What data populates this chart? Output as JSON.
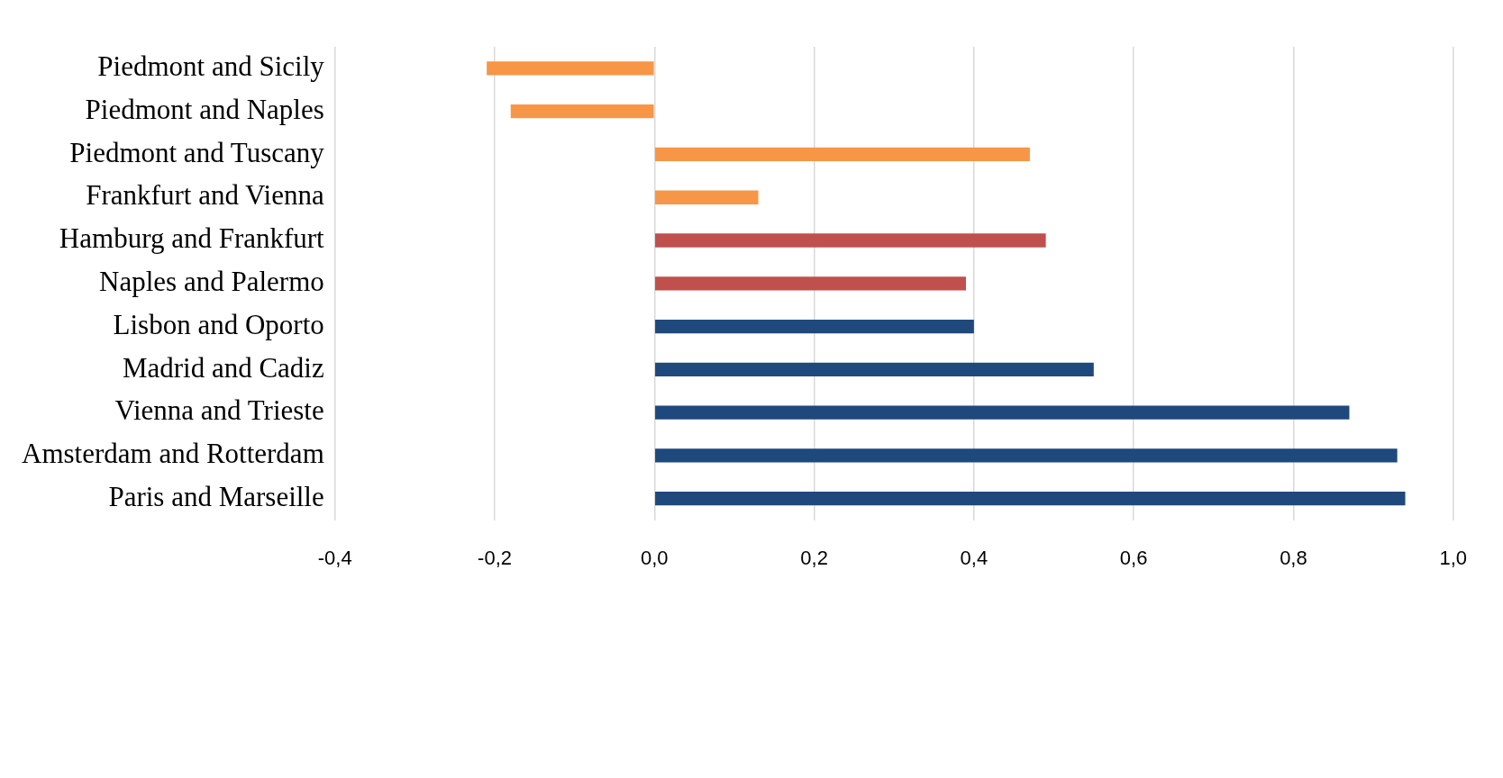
{
  "chart_data": {
    "type": "bar",
    "orientation": "horizontal",
    "categories": [
      "Piedmont and Sicily",
      "Piedmont and Naples",
      "Piedmont and Tuscany",
      "Frankfurt and Vienna",
      "Hamburg and Frankfurt",
      "Naples and Palermo",
      "Lisbon and Oporto",
      "Madrid and Cadiz",
      "Vienna and Trieste",
      "Amsterdam and Rotterdam",
      "Paris and Marseille"
    ],
    "values": [
      -0.21,
      -0.18,
      0.47,
      0.13,
      0.49,
      0.39,
      0.4,
      0.55,
      0.87,
      0.93,
      0.94
    ],
    "colors": [
      "#f79646",
      "#f79646",
      "#f79646",
      "#f79646",
      "#c0504d",
      "#c0504d",
      "#1f497d",
      "#1f497d",
      "#1f497d",
      "#1f497d",
      "#1f497d"
    ],
    "xlim": [
      -0.4,
      1.0
    ],
    "xticks": [
      {
        "value": -0.4,
        "label": "-0,4"
      },
      {
        "value": -0.2,
        "label": "-0,2"
      },
      {
        "value": 0,
        "label": "0,0"
      },
      {
        "value": 0.2,
        "label": "0,2"
      },
      {
        "value": 0.4,
        "label": "0,4"
      },
      {
        "value": 0.6,
        "label": "0,6"
      },
      {
        "value": 0.8,
        "label": "0,8"
      },
      {
        "value": 1.0,
        "label": "1,0"
      }
    ],
    "grid": "x"
  }
}
